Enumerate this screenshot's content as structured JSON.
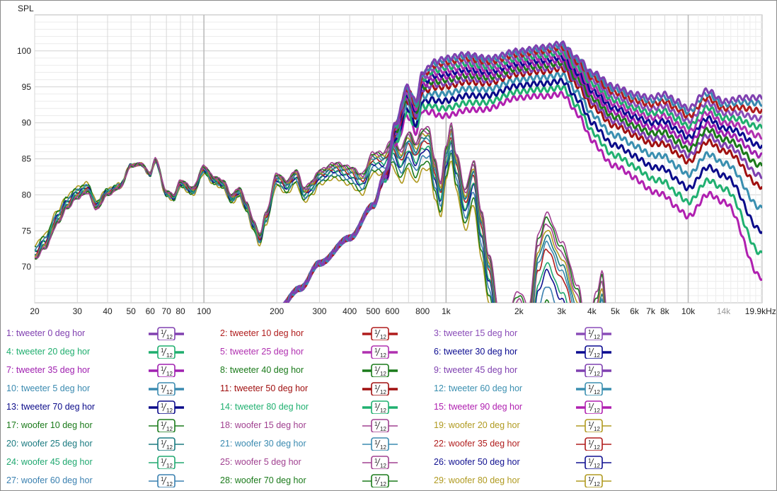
{
  "chart_data": {
    "type": "line",
    "ylabel": "SPL",
    "xunit": "kHz",
    "xscale": "log",
    "xlim": [
      20,
      20200
    ],
    "ylim": [
      65,
      105
    ],
    "grid": true,
    "y_ticks": [
      70,
      75,
      80,
      85,
      90,
      95,
      100
    ],
    "x_ticks": [
      {
        "f": 20,
        "label": "20"
      },
      {
        "f": 30,
        "label": "30"
      },
      {
        "f": 40,
        "label": "40"
      },
      {
        "f": 50,
        "label": "50"
      },
      {
        "f": 60,
        "label": "60"
      },
      {
        "f": 70,
        "label": "70"
      },
      {
        "f": 80,
        "label": "80"
      },
      {
        "f": 100,
        "label": "100"
      },
      {
        "f": 200,
        "label": "200"
      },
      {
        "f": 300,
        "label": "300"
      },
      {
        "f": 400,
        "label": "400"
      },
      {
        "f": 500,
        "label": "500"
      },
      {
        "f": 600,
        "label": "600"
      },
      {
        "f": 800,
        "label": "800"
      },
      {
        "f": 1000,
        "label": "1k"
      },
      {
        "f": 2000,
        "label": "2k"
      },
      {
        "f": 3000,
        "label": "3k"
      },
      {
        "f": 4000,
        "label": "4k"
      },
      {
        "f": 5000,
        "label": "5k"
      },
      {
        "f": 6000,
        "label": "6k"
      },
      {
        "f": 7000,
        "label": "7k"
      },
      {
        "f": 8000,
        "label": "8k"
      },
      {
        "f": 10000,
        "label": "10k"
      },
      {
        "f": 14000,
        "label": "14k",
        "muted": true
      },
      {
        "f": 19900,
        "label": "19.9kHz"
      }
    ],
    "smoothing_label_num": "1",
    "smoothing_label_den": "12",
    "tweeter_reference": [
      [
        200,
        64
      ],
      [
        250,
        67
      ],
      [
        300,
        70.5
      ],
      [
        400,
        74
      ],
      [
        500,
        78.5
      ],
      [
        560,
        83
      ],
      [
        620,
        90
      ],
      [
        690,
        95
      ],
      [
        750,
        93
      ],
      [
        800,
        97
      ],
      [
        900,
        98.5
      ],
      [
        1000,
        99
      ],
      [
        1200,
        99.5
      ],
      [
        1500,
        99
      ],
      [
        2000,
        100
      ],
      [
        2500,
        100.5
      ],
      [
        3000,
        101
      ],
      [
        3500,
        99
      ],
      [
        4000,
        97
      ],
      [
        5000,
        95
      ],
      [
        6000,
        94
      ],
      [
        7000,
        93.5
      ],
      [
        8000,
        94
      ],
      [
        9000,
        93
      ],
      [
        10000,
        92
      ],
      [
        12000,
        94.5
      ],
      [
        14000,
        93
      ],
      [
        17000,
        93.5
      ],
      [
        20200,
        93.5
      ]
    ],
    "tweeter_drop_at_90deg": [
      [
        200,
        0
      ],
      [
        500,
        0
      ],
      [
        700,
        4
      ],
      [
        1000,
        8
      ],
      [
        2000,
        6.5
      ],
      [
        3000,
        7
      ],
      [
        5000,
        11
      ],
      [
        10000,
        15
      ],
      [
        14000,
        14
      ],
      [
        20200,
        25
      ]
    ],
    "woofer_reference": [
      [
        20,
        71
      ],
      [
        22,
        72.5
      ],
      [
        25,
        76
      ],
      [
        27,
        78
      ],
      [
        30,
        79.5
      ],
      [
        33,
        80.3
      ],
      [
        36,
        78
      ],
      [
        40,
        80
      ],
      [
        45,
        81
      ],
      [
        50,
        84
      ],
      [
        55,
        84.3
      ],
      [
        60,
        83
      ],
      [
        63,
        85
      ],
      [
        70,
        80.5
      ],
      [
        75,
        80
      ],
      [
        80,
        82
      ],
      [
        90,
        81
      ],
      [
        100,
        84
      ],
      [
        110,
        82.5
      ],
      [
        120,
        82
      ],
      [
        130,
        80
      ],
      [
        140,
        81
      ],
      [
        150,
        79
      ],
      [
        160,
        76.5
      ],
      [
        170,
        74.5
      ],
      [
        180,
        77.5
      ],
      [
        200,
        83
      ],
      [
        220,
        82
      ],
      [
        240,
        83.5
      ],
      [
        260,
        81
      ],
      [
        280,
        82
      ],
      [
        300,
        83.5
      ],
      [
        350,
        84.5
      ],
      [
        400,
        84
      ],
      [
        450,
        83
      ],
      [
        500,
        86
      ],
      [
        550,
        86
      ],
      [
        600,
        88
      ],
      [
        650,
        86.5
      ],
      [
        700,
        89
      ],
      [
        750,
        87.5
      ],
      [
        800,
        89.5
      ],
      [
        850,
        89.5
      ],
      [
        900,
        85
      ],
      [
        950,
        82
      ],
      [
        1000,
        87
      ],
      [
        1050,
        90
      ],
      [
        1100,
        86
      ],
      [
        1200,
        81
      ],
      [
        1300,
        85
      ],
      [
        1400,
        78
      ],
      [
        1500,
        72
      ],
      [
        1700,
        62
      ],
      [
        2000,
        67
      ],
      [
        2200,
        65
      ],
      [
        2400,
        75
      ],
      [
        2600,
        78
      ],
      [
        3000,
        74
      ],
      [
        3500,
        68
      ],
      [
        3800,
        62
      ],
      [
        4200,
        67
      ],
      [
        4400,
        70
      ],
      [
        4700,
        62
      ]
    ],
    "woofer_drop_at_80deg": [
      [
        20,
        -2
      ],
      [
        100,
        1
      ],
      [
        300,
        2
      ],
      [
        500,
        3
      ],
      [
        800,
        6
      ],
      [
        1000,
        5
      ],
      [
        1500,
        7
      ],
      [
        2500,
        15
      ],
      [
        4700,
        15
      ]
    ],
    "series": [
      {
        "name": "1: tweeter 0 deg hor",
        "group": "tweeter",
        "angle": 0,
        "color": "#8040b0"
      },
      {
        "name": "2: tweeter 10 deg hor",
        "group": "tweeter",
        "angle": 10,
        "color": "#b01c1c"
      },
      {
        "name": "3: tweeter 15 deg hor",
        "group": "tweeter",
        "angle": 15,
        "color": "#8a4cb8"
      },
      {
        "name": "4: tweeter 20 deg hor",
        "group": "tweeter",
        "angle": 20,
        "color": "#1fae6e"
      },
      {
        "name": "5: tweeter 25 deg hor",
        "group": "tweeter",
        "angle": 25,
        "color": "#b030b0"
      },
      {
        "name": "6: tweeter 30 deg hor",
        "group": "tweeter",
        "angle": 30,
        "color": "#0a0a90"
      },
      {
        "name": "7: tweeter 35 deg hor",
        "group": "tweeter",
        "angle": 35,
        "color": "#a020b0"
      },
      {
        "name": "8: tweeter 40 deg hor",
        "group": "tweeter",
        "angle": 40,
        "color": "#1a7a1a"
      },
      {
        "name": "9: tweeter 45 deg hor",
        "group": "tweeter",
        "angle": 45,
        "color": "#7f40b0"
      },
      {
        "name": "10: tweeter 5 deg hor",
        "group": "tweeter",
        "angle": 5,
        "color": "#3a8ab0"
      },
      {
        "name": "11: tweeter 50 deg hor",
        "group": "tweeter",
        "angle": 50,
        "color": "#a01010"
      },
      {
        "name": "12: tweeter 60 deg hor",
        "group": "tweeter",
        "angle": 60,
        "color": "#3a8fb0"
      },
      {
        "name": "13: tweeter 70 deg hor",
        "group": "tweeter",
        "angle": 70,
        "color": "#0b0b8a"
      },
      {
        "name": "14: tweeter 80 deg hor",
        "group": "tweeter",
        "angle": 80,
        "color": "#20b070"
      },
      {
        "name": "15: tweeter 90 deg hor",
        "group": "tweeter",
        "angle": 90,
        "color": "#b020b0"
      },
      {
        "name": "17: woofer 10 deg hor",
        "group": "woofer",
        "angle": 10,
        "color": "#1a7a1a"
      },
      {
        "name": "18: woofer 15 deg hor",
        "group": "woofer",
        "angle": 15,
        "color": "#a04090"
      },
      {
        "name": "19: woofer 20 deg hor",
        "group": "woofer",
        "angle": 20,
        "color": "#b09a20"
      },
      {
        "name": "20: woofer 25 deg hor",
        "group": "woofer",
        "angle": 25,
        "color": "#1a7a80"
      },
      {
        "name": "21: woofer 30 deg hor",
        "group": "woofer",
        "angle": 30,
        "color": "#3a8ab0"
      },
      {
        "name": "22: woofer 35 deg hor",
        "group": "woofer",
        "angle": 35,
        "color": "#b01c1c"
      },
      {
        "name": "24: woofer 45 deg hor",
        "group": "woofer",
        "angle": 45,
        "color": "#20a870"
      },
      {
        "name": "25: woofer 5 deg hor",
        "group": "woofer",
        "angle": 5,
        "color": "#a04090"
      },
      {
        "name": "26: woofer 50 deg hor",
        "group": "woofer",
        "angle": 50,
        "color": "#101090"
      },
      {
        "name": "27: woofer 60 deg hor",
        "group": "woofer",
        "angle": 60,
        "color": "#3a80b0"
      },
      {
        "name": "28: woofer 70 deg hor",
        "group": "woofer",
        "angle": 70,
        "color": "#1a7a1a"
      },
      {
        "name": "29: woofer 80 deg hor",
        "group": "woofer",
        "angle": 80,
        "color": "#b09a20"
      }
    ]
  }
}
